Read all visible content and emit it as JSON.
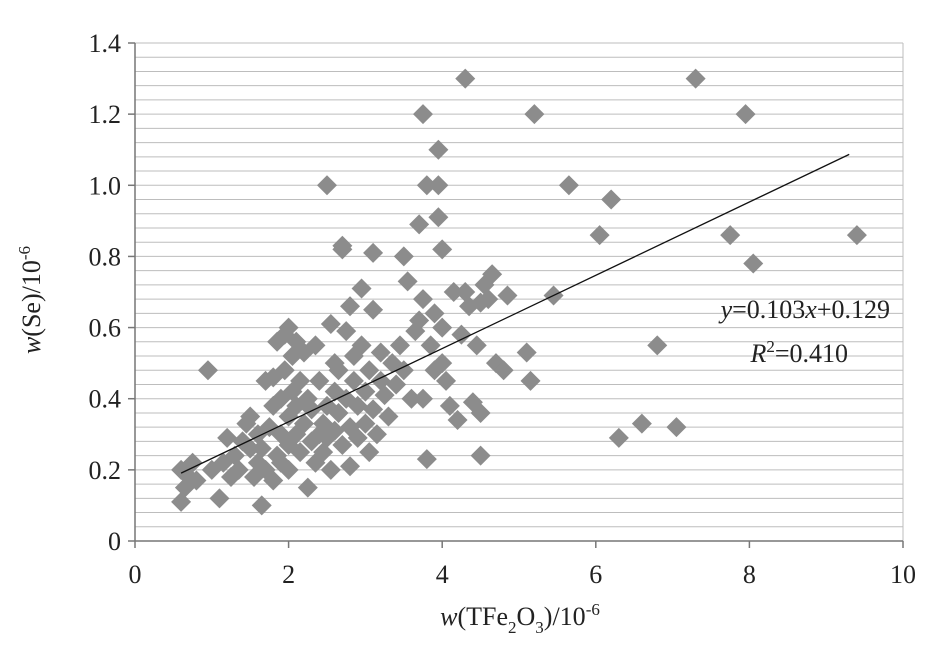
{
  "chart_data": {
    "type": "scatter",
    "xlabel": {
      "italic": "w",
      "pre": "(TFe",
      "sub1": "2",
      "mid": "O",
      "sub2": "3",
      "post": ")/10",
      "sup": "-6"
    },
    "ylabel": {
      "italic": "w",
      "pre": "(Se)/10",
      "sup": "-6"
    },
    "xlim": [
      0,
      10
    ],
    "ylim": [
      0,
      1.4
    ],
    "x_ticks": [
      0,
      2,
      4,
      6,
      8,
      10
    ],
    "x_tick_labels": [
      "0",
      "2",
      "4",
      "6",
      "8",
      "10"
    ],
    "y_ticks": [
      0,
      0.2,
      0.4,
      0.6,
      0.8,
      1.0,
      1.2,
      1.4
    ],
    "y_tick_labels": [
      "0",
      "0.2",
      "0.4",
      "0.6",
      "0.8",
      "1.0",
      "1.2",
      "1.4"
    ],
    "minor_gridline_step": 0.04,
    "marker_color": "#8c8c8c",
    "trendline": {
      "slope": 0.103,
      "intercept": 0.129,
      "x_range": [
        0.6,
        9.3
      ],
      "color": "#111111"
    },
    "equation": {
      "y_italic": "y",
      "rhs_a": "=0.103",
      "x_italic": "x",
      "rhs_b": "+0.129"
    },
    "r_squared": {
      "r_italic": "R",
      "sup": "2",
      "rhs": "=0.410"
    },
    "series": [
      {
        "points": [
          [
            0.6,
            0.11
          ],
          [
            0.6,
            0.2
          ],
          [
            0.65,
            0.15
          ],
          [
            0.7,
            0.18
          ],
          [
            0.75,
            0.22
          ],
          [
            0.8,
            0.17
          ],
          [
            0.95,
            0.48
          ],
          [
            1.0,
            0.2
          ],
          [
            1.1,
            0.12
          ],
          [
            1.15,
            0.22
          ],
          [
            1.2,
            0.29
          ],
          [
            1.25,
            0.18
          ],
          [
            1.3,
            0.24
          ],
          [
            1.35,
            0.2
          ],
          [
            1.4,
            0.28
          ],
          [
            1.45,
            0.33
          ],
          [
            1.5,
            0.35
          ],
          [
            1.5,
            0.26
          ],
          [
            1.55,
            0.18
          ],
          [
            1.6,
            0.3
          ],
          [
            1.6,
            0.22
          ],
          [
            1.65,
            0.1
          ],
          [
            1.65,
            0.26
          ],
          [
            1.7,
            0.45
          ],
          [
            1.7,
            0.2
          ],
          [
            1.75,
            0.32
          ],
          [
            1.8,
            0.38
          ],
          [
            1.8,
            0.46
          ],
          [
            1.8,
            0.17
          ],
          [
            1.85,
            0.24
          ],
          [
            1.85,
            0.56
          ],
          [
            1.9,
            0.3
          ],
          [
            1.9,
            0.4
          ],
          [
            1.9,
            0.22
          ],
          [
            1.95,
            0.48
          ],
          [
            1.95,
            0.58
          ],
          [
            2.0,
            0.6
          ],
          [
            2.0,
            0.35
          ],
          [
            2.0,
            0.27
          ],
          [
            2.0,
            0.2
          ],
          [
            2.05,
            0.42
          ],
          [
            2.05,
            0.52
          ],
          [
            2.1,
            0.3
          ],
          [
            2.1,
            0.38
          ],
          [
            2.1,
            0.56
          ],
          [
            2.15,
            0.25
          ],
          [
            2.15,
            0.45
          ],
          [
            2.2,
            0.33
          ],
          [
            2.2,
            0.53
          ],
          [
            2.25,
            0.15
          ],
          [
            2.25,
            0.4
          ],
          [
            2.3,
            0.28
          ],
          [
            2.3,
            0.37
          ],
          [
            2.35,
            0.55
          ],
          [
            2.35,
            0.22
          ],
          [
            2.4,
            0.3
          ],
          [
            2.4,
            0.45
          ],
          [
            2.45,
            0.33
          ],
          [
            2.45,
            0.25
          ],
          [
            2.5,
            1.0
          ],
          [
            2.5,
            0.38
          ],
          [
            2.5,
            0.29
          ],
          [
            2.55,
            0.2
          ],
          [
            2.55,
            0.61
          ],
          [
            2.6,
            0.5
          ],
          [
            2.6,
            0.42
          ],
          [
            2.6,
            0.31
          ],
          [
            2.65,
            0.36
          ],
          [
            2.65,
            0.48
          ],
          [
            2.7,
            0.83
          ],
          [
            2.7,
            0.82
          ],
          [
            2.7,
            0.27
          ],
          [
            2.75,
            0.59
          ],
          [
            2.75,
            0.4
          ],
          [
            2.8,
            0.66
          ],
          [
            2.8,
            0.32
          ],
          [
            2.8,
            0.21
          ],
          [
            2.85,
            0.45
          ],
          [
            2.85,
            0.52
          ],
          [
            2.9,
            0.38
          ],
          [
            2.9,
            0.29
          ],
          [
            2.95,
            0.71
          ],
          [
            2.95,
            0.55
          ],
          [
            3.0,
            0.42
          ],
          [
            3.0,
            0.33
          ],
          [
            3.05,
            0.48
          ],
          [
            3.05,
            0.25
          ],
          [
            3.1,
            0.81
          ],
          [
            3.1,
            0.65
          ],
          [
            3.1,
            0.37
          ],
          [
            3.15,
            0.3
          ],
          [
            3.2,
            0.53
          ],
          [
            3.2,
            0.45
          ],
          [
            3.25,
            0.41
          ],
          [
            3.3,
            0.35
          ],
          [
            3.35,
            0.5
          ],
          [
            3.4,
            0.44
          ],
          [
            3.45,
            0.55
          ],
          [
            3.5,
            0.8
          ],
          [
            3.5,
            0.48
          ],
          [
            3.55,
            0.73
          ],
          [
            3.6,
            0.4
          ],
          [
            3.65,
            0.59
          ],
          [
            3.7,
            0.62
          ],
          [
            3.7,
            0.89
          ],
          [
            3.75,
            1.2
          ],
          [
            3.75,
            0.68
          ],
          [
            3.75,
            0.4
          ],
          [
            3.8,
            1.0
          ],
          [
            3.8,
            0.23
          ],
          [
            3.85,
            0.55
          ],
          [
            3.9,
            0.48
          ],
          [
            3.9,
            0.64
          ],
          [
            3.95,
            1.1
          ],
          [
            3.95,
            1.0
          ],
          [
            3.95,
            0.91
          ],
          [
            4.0,
            0.82
          ],
          [
            4.0,
            0.6
          ],
          [
            4.0,
            0.5
          ],
          [
            4.05,
            0.45
          ],
          [
            4.1,
            0.38
          ],
          [
            4.15,
            0.7
          ],
          [
            4.2,
            0.34
          ],
          [
            4.25,
            0.58
          ],
          [
            4.3,
            1.3
          ],
          [
            4.3,
            0.7
          ],
          [
            4.35,
            0.66
          ],
          [
            4.4,
            0.39
          ],
          [
            4.45,
            0.55
          ],
          [
            4.5,
            0.24
          ],
          [
            4.5,
            0.67
          ],
          [
            4.5,
            0.36
          ],
          [
            4.55,
            0.72
          ],
          [
            4.6,
            0.68
          ],
          [
            4.65,
            0.75
          ],
          [
            4.7,
            0.5
          ],
          [
            4.8,
            0.48
          ],
          [
            4.85,
            0.69
          ],
          [
            5.1,
            0.53
          ],
          [
            5.15,
            0.45
          ],
          [
            5.2,
            1.2
          ],
          [
            5.45,
            0.69
          ],
          [
            5.65,
            1.0
          ],
          [
            6.05,
            0.86
          ],
          [
            6.2,
            0.96
          ],
          [
            6.3,
            0.29
          ],
          [
            6.6,
            0.33
          ],
          [
            6.8,
            0.55
          ],
          [
            7.05,
            0.32
          ],
          [
            7.3,
            1.3
          ],
          [
            7.75,
            0.86
          ],
          [
            7.95,
            1.2
          ],
          [
            8.05,
            0.78
          ],
          [
            9.4,
            0.86
          ]
        ]
      }
    ]
  }
}
